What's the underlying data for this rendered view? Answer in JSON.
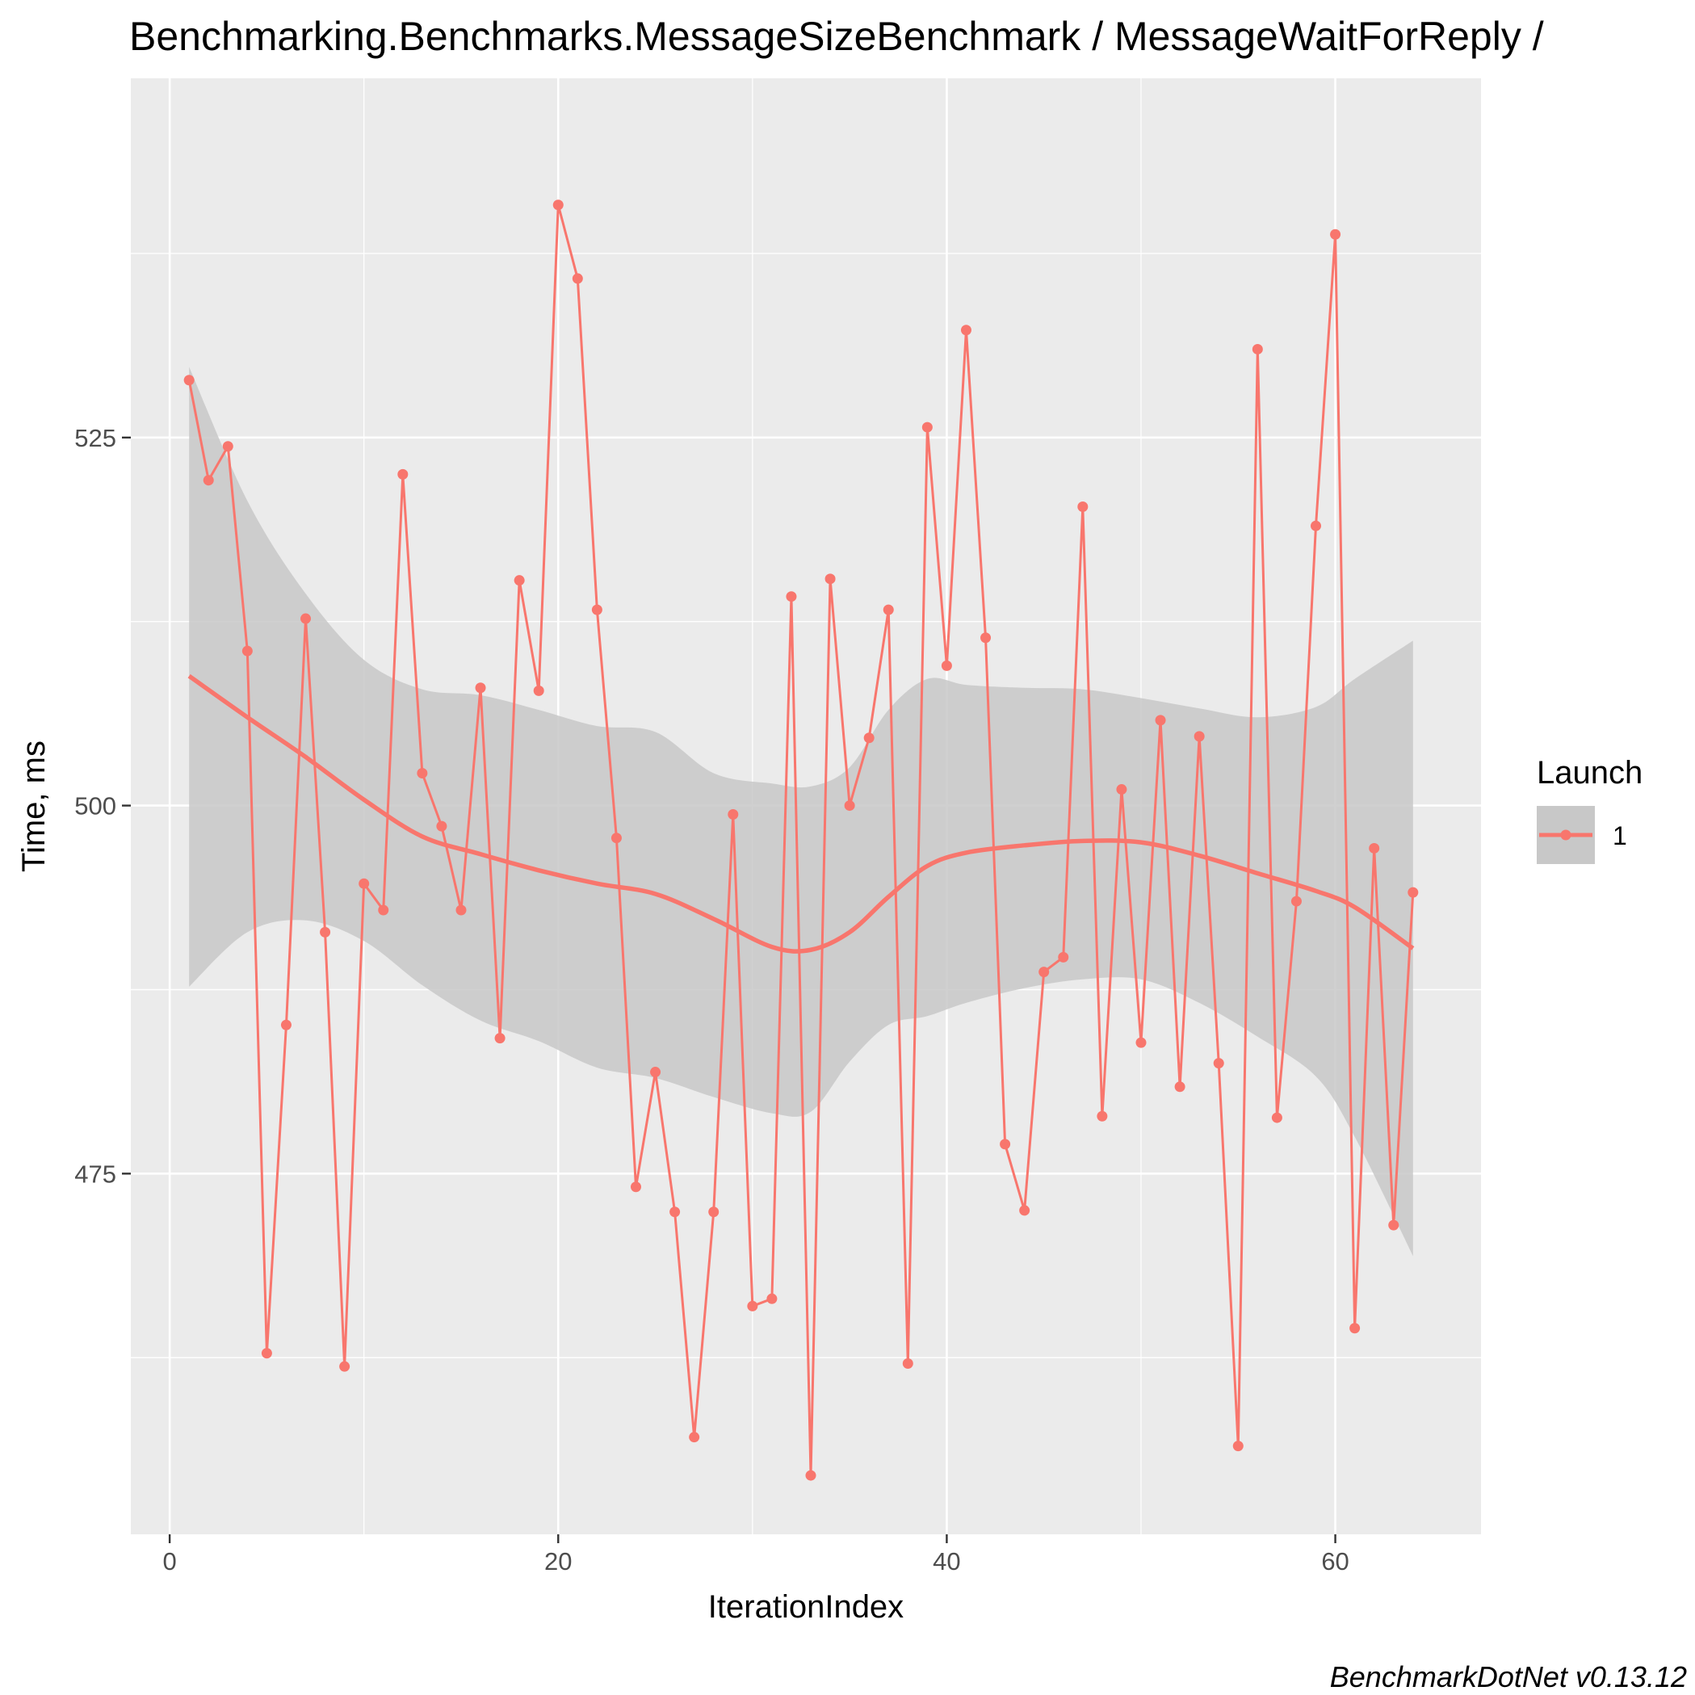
{
  "chart_data": {
    "type": "line",
    "title": "Benchmarking.Benchmarks.MessageSizeBenchmark / MessageWaitForReply /",
    "xlabel": "IterationIndex",
    "ylabel": "Time, ms",
    "caption": "BenchmarkDotNet v0.13.12",
    "xlim": [
      -2,
      67.5
    ],
    "ylim": [
      450.5,
      549.4
    ],
    "x_ticks": [
      0,
      20,
      40,
      60
    ],
    "x_tick_labels": [
      "0",
      "20",
      "40",
      "60"
    ],
    "y_ticks": [
      475,
      500,
      525
    ],
    "y_tick_labels": [
      "475",
      "500",
      "525"
    ],
    "grid": true,
    "legend": {
      "title": "Launch",
      "position": "right",
      "entries": [
        "1"
      ]
    },
    "series": [
      {
        "name": "1",
        "color": "#F8766D",
        "x": [
          1,
          2,
          3,
          4,
          5,
          6,
          7,
          8,
          9,
          10,
          11,
          12,
          13,
          14,
          15,
          16,
          17,
          18,
          19,
          20,
          21,
          22,
          23,
          24,
          25,
          26,
          27,
          28,
          29,
          30,
          31,
          32,
          33,
          34,
          35,
          36,
          37,
          38,
          39,
          40,
          41,
          42,
          43,
          44,
          45,
          46,
          47,
          48,
          49,
          50,
          51,
          52,
          53,
          54,
          55,
          56,
          57,
          58,
          59,
          60,
          61,
          62,
          63,
          64
        ],
        "values": [
          528.9,
          522.1,
          524.4,
          510.5,
          462.8,
          485.1,
          512.7,
          491.4,
          461.9,
          494.7,
          492.9,
          522.5,
          502.2,
          498.6,
          492.9,
          508.0,
          484.2,
          515.3,
          507.8,
          540.8,
          535.8,
          513.3,
          497.8,
          474.1,
          481.9,
          472.4,
          457.1,
          472.4,
          499.4,
          466.0,
          466.5,
          514.2,
          454.5,
          515.4,
          500.0,
          504.6,
          513.3,
          462.1,
          525.7,
          509.5,
          532.3,
          511.4,
          477.0,
          472.5,
          488.7,
          489.7,
          520.3,
          478.9,
          501.1,
          483.9,
          505.8,
          480.9,
          504.7,
          482.5,
          456.5,
          531.0,
          478.8,
          493.5,
          519.0,
          538.8,
          464.5,
          497.1,
          471.5,
          494.1
        ]
      }
    ],
    "smooth": {
      "method": "loess",
      "color": "#F8766D",
      "band_color": "#C8C8C8",
      "x": [
        1,
        4,
        7,
        10,
        13,
        16,
        19,
        22,
        25,
        28,
        31,
        33,
        35,
        37,
        39,
        41,
        44,
        47,
        50,
        53,
        56,
        59,
        61,
        64
      ],
      "fit": [
        508.8,
        506.0,
        503.3,
        500.4,
        497.9,
        496.7,
        495.6,
        494.7,
        494.0,
        492.3,
        490.4,
        490.2,
        491.4,
        493.8,
        495.9,
        496.8,
        497.3,
        497.6,
        497.5,
        496.6,
        495.4,
        494.2,
        493.1,
        490.3
      ],
      "lower": [
        487.7,
        491.4,
        492.2,
        490.8,
        487.8,
        485.4,
        484.0,
        482.2,
        481.5,
        480.2,
        479.1,
        479.2,
        482.6,
        485.1,
        485.7,
        486.6,
        487.6,
        488.2,
        488.2,
        486.6,
        484.3,
        481.6,
        477.5,
        469.4
      ],
      "upper": [
        529.8,
        520.7,
        514.4,
        509.9,
        507.9,
        507.5,
        506.5,
        505.4,
        505.0,
        502.2,
        501.5,
        501.3,
        502.6,
        506.5,
        508.6,
        508.2,
        508.0,
        507.9,
        507.3,
        506.6,
        506.0,
        506.7,
        508.6,
        511.2
      ]
    }
  }
}
